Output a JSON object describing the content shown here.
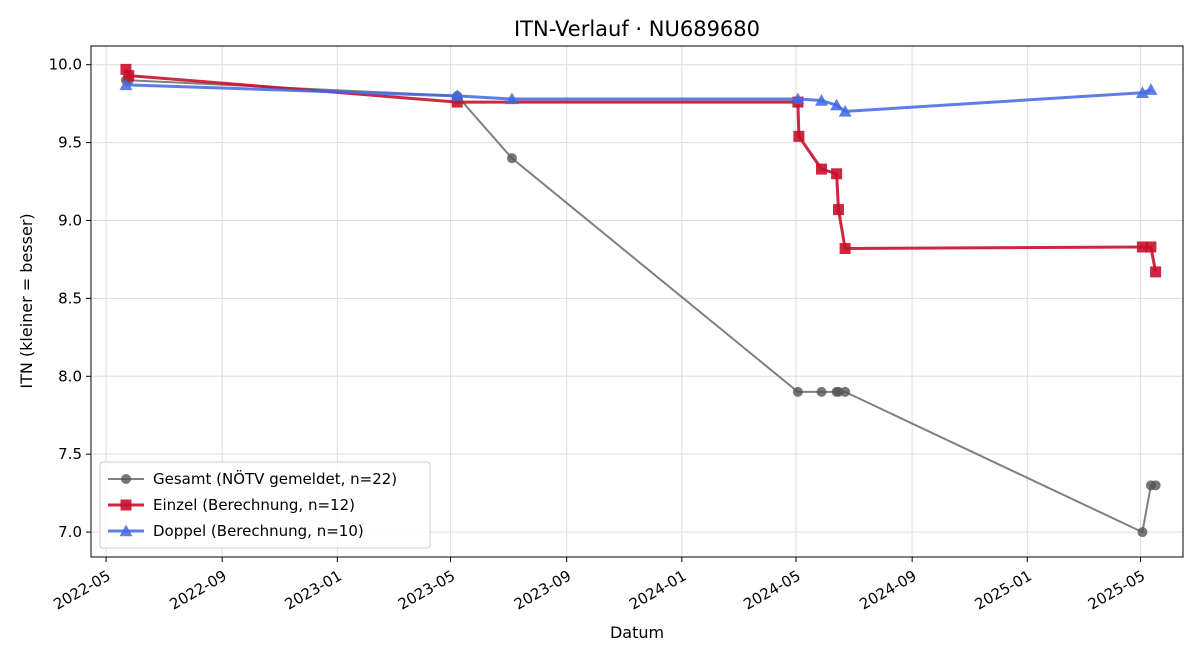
{
  "chart_data": {
    "type": "line",
    "title": "ITN-Verlauf · NU689680",
    "xlabel": "Datum",
    "ylabel": "ITN  (kleiner = besser)",
    "xlim": [
      "2022-04-15",
      "2025-06-15"
    ],
    "ylim": [
      6.84,
      10.12
    ],
    "x_ticks": [
      "2022-05",
      "2022-09",
      "2023-01",
      "2023-05",
      "2023-09",
      "2024-01",
      "2024-05",
      "2024-09",
      "2025-01",
      "2025-05"
    ],
    "y_ticks": [
      "7.0",
      "7.5",
      "8.0",
      "8.5",
      "9.0",
      "9.5",
      "10.0"
    ],
    "grid": true,
    "legend_position": "lower-left",
    "series": [
      {
        "name": "Gesamt (NÖTV gemeldet, n=22)",
        "color": "#555555",
        "marker": "circle",
        "points": [
          {
            "x": "2022-05-22",
            "y": 9.9
          },
          {
            "x": "2022-05-25",
            "y": 9.9
          },
          {
            "x": "2023-05-08",
            "y": 9.8
          },
          {
            "x": "2023-07-05",
            "y": 9.4
          },
          {
            "x": "2024-05-03",
            "y": 7.9
          },
          {
            "x": "2024-05-28",
            "y": 7.9
          },
          {
            "x": "2024-06-13",
            "y": 7.9
          },
          {
            "x": "2024-06-15",
            "y": 7.9
          },
          {
            "x": "2024-06-22",
            "y": 7.9
          },
          {
            "x": "2025-05-03",
            "y": 7.0
          },
          {
            "x": "2025-05-12",
            "y": 7.3
          },
          {
            "x": "2025-05-17",
            "y": 7.3
          }
        ]
      },
      {
        "name": "Einzel (Berechnung, n=12)",
        "color": "#c8102e",
        "marker": "square",
        "points": [
          {
            "x": "2022-05-22",
            "y": 9.97
          },
          {
            "x": "2022-05-25",
            "y": 9.93
          },
          {
            "x": "2023-05-08",
            "y": 9.76
          },
          {
            "x": "2024-05-03",
            "y": 9.76
          },
          {
            "x": "2024-05-04",
            "y": 9.54
          },
          {
            "x": "2024-05-28",
            "y": 9.33
          },
          {
            "x": "2024-06-13",
            "y": 9.3
          },
          {
            "x": "2024-06-15",
            "y": 9.07
          },
          {
            "x": "2024-06-22",
            "y": 8.82
          },
          {
            "x": "2025-05-03",
            "y": 8.83
          },
          {
            "x": "2025-05-12",
            "y": 8.83
          },
          {
            "x": "2025-05-17",
            "y": 8.67
          }
        ]
      },
      {
        "name": "Doppel (Berechnung, n=10)",
        "color": "#4169e1",
        "marker": "triangle",
        "points": [
          {
            "x": "2022-05-22",
            "y": 9.87
          },
          {
            "x": "2023-05-08",
            "y": 9.8
          },
          {
            "x": "2023-07-05",
            "y": 9.78
          },
          {
            "x": "2024-05-03",
            "y": 9.78
          },
          {
            "x": "2024-05-28",
            "y": 9.77
          },
          {
            "x": "2024-06-13",
            "y": 9.74
          },
          {
            "x": "2024-06-22",
            "y": 9.7
          },
          {
            "x": "2025-05-03",
            "y": 9.82
          },
          {
            "x": "2025-05-12",
            "y": 9.84
          }
        ]
      }
    ]
  }
}
